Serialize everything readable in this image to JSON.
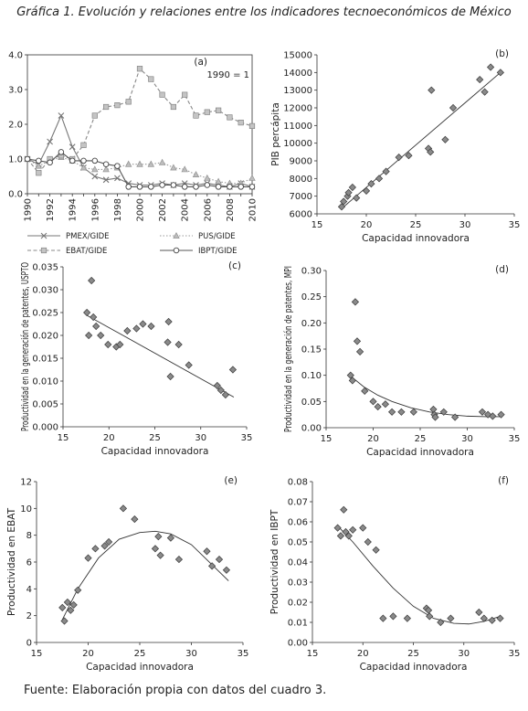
{
  "figure": {
    "title": "Gráfica 1. Evolución y relaciones entre los indicadores tecnoeconómicos de México",
    "source": "Fuente: Elaboración propia con datos del cuadro 3."
  },
  "chart_data": [
    {
      "panel": "(a)",
      "type": "line",
      "note": "1990 = 1",
      "x": [
        1990,
        1991,
        1992,
        1993,
        1994,
        1995,
        1996,
        1997,
        1998,
        1999,
        2000,
        2001,
        2002,
        2003,
        2004,
        2005,
        2006,
        2007,
        2008,
        2009,
        2010
      ],
      "xticks": [
        "1990",
        "1992",
        "1994",
        "1996",
        "1998",
        "2000",
        "2002",
        "2004",
        "2006",
        "2008",
        "2010"
      ],
      "ylim": [
        0,
        4
      ],
      "yticks": [
        "0.0",
        "1.0",
        "2.0",
        "3.0",
        "4.0"
      ],
      "grid": false,
      "series": [
        {
          "name": "PMEX/GIDE",
          "style": "solid",
          "marker": "x",
          "color": "#777777",
          "values": [
            1.0,
            0.85,
            1.5,
            2.25,
            1.35,
            0.75,
            0.5,
            0.4,
            0.45,
            0.3,
            0.25,
            0.25,
            0.3,
            0.25,
            0.3,
            0.25,
            0.3,
            0.25,
            0.2,
            0.3,
            0.2
          ]
        },
        {
          "name": "PUS/GIDE",
          "style": "dotted",
          "marker": "triangle",
          "color": "#999999",
          "values": [
            1.0,
            0.8,
            0.95,
            1.05,
            0.95,
            0.75,
            0.7,
            0.7,
            0.75,
            0.85,
            0.85,
            0.85,
            0.9,
            0.75,
            0.7,
            0.55,
            0.45,
            0.35,
            0.3,
            0.3,
            0.45
          ]
        },
        {
          "name": "EBAT/GIDE",
          "style": "dashed",
          "marker": "square",
          "color": "#888888",
          "values": [
            1.0,
            0.6,
            1.0,
            1.1,
            1.0,
            1.4,
            2.25,
            2.5,
            2.55,
            2.65,
            3.6,
            3.3,
            2.85,
            2.5,
            2.85,
            2.25,
            2.35,
            2.4,
            2.2,
            2.05,
            1.95
          ]
        },
        {
          "name": "IBPT/GIDE",
          "style": "solid",
          "marker": "circle",
          "color": "#555555",
          "values": [
            1.0,
            0.95,
            0.9,
            1.2,
            0.95,
            0.95,
            0.95,
            0.85,
            0.8,
            0.2,
            0.2,
            0.2,
            0.25,
            0.25,
            0.2,
            0.2,
            0.25,
            0.2,
            0.2,
            0.2,
            0.2
          ]
        }
      ]
    },
    {
      "panel": "(b)",
      "type": "scatter",
      "xlabel": "Capacidad innovadora",
      "ylabel": "PIB percápita",
      "xlim": [
        15,
        35
      ],
      "ylim": [
        6000,
        15000
      ],
      "xticks": [
        "15",
        "20",
        "25",
        "30",
        "35"
      ],
      "yticks": [
        "6000",
        "7000",
        "8000",
        "9000",
        "10000",
        "11000",
        "12000",
        "13000",
        "14000",
        "15000"
      ],
      "points": [
        [
          17.5,
          6400
        ],
        [
          17.7,
          6700
        ],
        [
          18.1,
          7000
        ],
        [
          18.2,
          7200
        ],
        [
          18.6,
          7500
        ],
        [
          19.0,
          6900
        ],
        [
          20.0,
          7300
        ],
        [
          20.5,
          7700
        ],
        [
          21.3,
          8000
        ],
        [
          22.0,
          8400
        ],
        [
          23.3,
          9200
        ],
        [
          24.3,
          9300
        ],
        [
          26.3,
          9700
        ],
        [
          26.5,
          9500
        ],
        [
          26.6,
          13000
        ],
        [
          28.0,
          10200
        ],
        [
          28.8,
          12000
        ],
        [
          31.5,
          13600
        ],
        [
          32.0,
          12900
        ],
        [
          32.6,
          14300
        ],
        [
          33.6,
          14000
        ]
      ],
      "trend": {
        "type": "linear",
        "from": [
          17.5,
          6300
        ],
        "to": [
          33.6,
          14000
        ]
      }
    },
    {
      "panel": "(c)",
      "type": "scatter",
      "xlabel": "Capacidad innovadora",
      "ylabel": "Productividad en la generación de patentes, USPTO",
      "xlim": [
        15,
        35
      ],
      "ylim": [
        0,
        0.035
      ],
      "xticks": [
        "15",
        "20",
        "25",
        "30",
        "35"
      ],
      "yticks": [
        "0.000",
        "0.005",
        "0.010",
        "0.015",
        "0.020",
        "0.025",
        "0.030",
        "0.035"
      ],
      "points": [
        [
          17.6,
          0.025
        ],
        [
          17.8,
          0.02
        ],
        [
          18.1,
          0.032
        ],
        [
          18.3,
          0.024
        ],
        [
          18.6,
          0.022
        ],
        [
          19.1,
          0.02
        ],
        [
          19.9,
          0.018
        ],
        [
          20.8,
          0.0175
        ],
        [
          21.2,
          0.018
        ],
        [
          22.0,
          0.021
        ],
        [
          23.0,
          0.0215
        ],
        [
          23.7,
          0.0225
        ],
        [
          24.6,
          0.022
        ],
        [
          26.4,
          0.0185
        ],
        [
          26.5,
          0.023
        ],
        [
          26.7,
          0.011
        ],
        [
          27.6,
          0.018
        ],
        [
          28.7,
          0.0135
        ],
        [
          31.8,
          0.009
        ],
        [
          32.2,
          0.008
        ],
        [
          32.7,
          0.007
        ],
        [
          33.5,
          0.0125
        ]
      ],
      "trend": {
        "type": "linear",
        "from": [
          17.5,
          0.0245
        ],
        "to": [
          33.6,
          0.0065
        ]
      }
    },
    {
      "panel": "(d)",
      "type": "scatter",
      "xlabel": "Capacidad innovadora",
      "ylabel": "Productividad en la generación de patentes, MPI",
      "xlim": [
        15,
        35
      ],
      "ylim": [
        0,
        0.3
      ],
      "xticks": [
        "15",
        "20",
        "25",
        "30",
        "35"
      ],
      "yticks": [
        "0.00",
        "0.05",
        "0.10",
        "0.15",
        "0.20",
        "0.25",
        "0.30"
      ],
      "points": [
        [
          17.6,
          0.1
        ],
        [
          17.8,
          0.09
        ],
        [
          18.1,
          0.24
        ],
        [
          18.3,
          0.165
        ],
        [
          18.6,
          0.145
        ],
        [
          19.1,
          0.07
        ],
        [
          20.0,
          0.05
        ],
        [
          20.5,
          0.04
        ],
        [
          21.3,
          0.045
        ],
        [
          22.0,
          0.03
        ],
        [
          23.0,
          0.03
        ],
        [
          24.3,
          0.03
        ],
        [
          26.4,
          0.035
        ],
        [
          26.5,
          0.025
        ],
        [
          26.6,
          0.02
        ],
        [
          27.5,
          0.03
        ],
        [
          28.7,
          0.02
        ],
        [
          31.6,
          0.03
        ],
        [
          32.2,
          0.025
        ],
        [
          32.7,
          0.022
        ],
        [
          33.6,
          0.025
        ]
      ],
      "trend": {
        "type": "curve",
        "x": [
          17.5,
          19,
          20.5,
          22,
          24,
          26,
          28,
          30,
          32,
          33.6
        ],
        "y": [
          0.1,
          0.078,
          0.062,
          0.05,
          0.038,
          0.03,
          0.025,
          0.022,
          0.021,
          0.021
        ]
      }
    },
    {
      "panel": "(e)",
      "type": "scatter",
      "xlabel": "Capacidad innovadora",
      "ylabel": "Productividad en EBAT",
      "xlim": [
        15,
        35
      ],
      "ylim": [
        0,
        12
      ],
      "xticks": [
        "15",
        "20",
        "25",
        "30",
        "35"
      ],
      "yticks": [
        "0",
        "2",
        "4",
        "6",
        "8",
        "10",
        "12"
      ],
      "points": [
        [
          17.5,
          2.6
        ],
        [
          17.7,
          1.6
        ],
        [
          18.0,
          3.0
        ],
        [
          18.3,
          2.4
        ],
        [
          18.6,
          2.8
        ],
        [
          19.0,
          3.9
        ],
        [
          20.0,
          6.3
        ],
        [
          20.7,
          7.0
        ],
        [
          21.6,
          7.2
        ],
        [
          22.0,
          7.5
        ],
        [
          23.4,
          10.0
        ],
        [
          24.5,
          9.2
        ],
        [
          26.5,
          7.0
        ],
        [
          26.8,
          7.9
        ],
        [
          27.0,
          6.5
        ],
        [
          28.0,
          7.8
        ],
        [
          28.8,
          6.2
        ],
        [
          31.5,
          6.8
        ],
        [
          32.0,
          5.7
        ],
        [
          32.7,
          6.2
        ],
        [
          33.4,
          5.4
        ]
      ],
      "trend": {
        "type": "curve",
        "x": [
          17.5,
          19,
          21,
          23,
          25,
          26.5,
          28,
          30,
          32,
          33.6
        ],
        "y": [
          1.7,
          4.0,
          6.3,
          7.7,
          8.2,
          8.3,
          8.1,
          7.3,
          5.8,
          4.6
        ]
      }
    },
    {
      "panel": "(f)",
      "type": "scatter",
      "xlabel": "Capacidad innovadora",
      "ylabel": "Productividad en IBPT",
      "xlim": [
        15,
        35
      ],
      "ylim": [
        0,
        0.08
      ],
      "xticks": [
        "15",
        "20",
        "25",
        "30",
        "35"
      ],
      "yticks": [
        "0.00",
        "0.01",
        "0.02",
        "0.03",
        "0.04",
        "0.05",
        "0.06",
        "0.07",
        "0.08"
      ],
      "points": [
        [
          17.5,
          0.057
        ],
        [
          17.8,
          0.053
        ],
        [
          18.1,
          0.066
        ],
        [
          18.3,
          0.055
        ],
        [
          18.6,
          0.053
        ],
        [
          19.0,
          0.056
        ],
        [
          20.0,
          0.057
        ],
        [
          20.5,
          0.05
        ],
        [
          21.3,
          0.046
        ],
        [
          22.0,
          0.012
        ],
        [
          23.0,
          0.013
        ],
        [
          24.4,
          0.012
        ],
        [
          26.3,
          0.017
        ],
        [
          26.5,
          0.016
        ],
        [
          26.6,
          0.013
        ],
        [
          27.7,
          0.01
        ],
        [
          28.7,
          0.012
        ],
        [
          31.5,
          0.015
        ],
        [
          32.0,
          0.012
        ],
        [
          32.8,
          0.011
        ],
        [
          33.6,
          0.012
        ]
      ],
      "trend": {
        "type": "curve",
        "x": [
          17.5,
          19,
          21,
          23,
          25,
          27,
          29,
          30.5,
          32,
          33.6
        ],
        "y": [
          0.058,
          0.05,
          0.038,
          0.027,
          0.018,
          0.012,
          0.0095,
          0.0092,
          0.0105,
          0.013
        ]
      }
    }
  ]
}
